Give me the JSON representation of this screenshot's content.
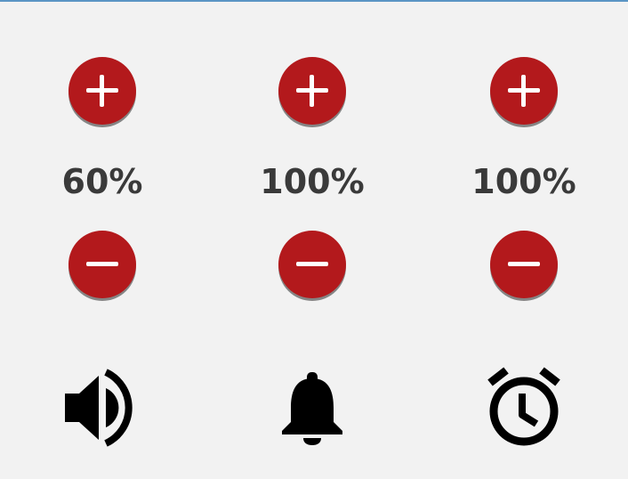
{
  "controls": [
    {
      "name": "media-volume",
      "percent_label": "60%",
      "value": 60,
      "icon": "speaker-volume-icon"
    },
    {
      "name": "notification-volume",
      "percent_label": "100%",
      "value": 100,
      "icon": "bell-icon"
    },
    {
      "name": "alarm-volume",
      "percent_label": "100%",
      "value": 100,
      "icon": "alarm-clock-icon"
    }
  ],
  "colors": {
    "button": "#b3191c",
    "background": "#f2f2f2",
    "text": "#3a3a3a",
    "top_line": "#5b95c4"
  }
}
